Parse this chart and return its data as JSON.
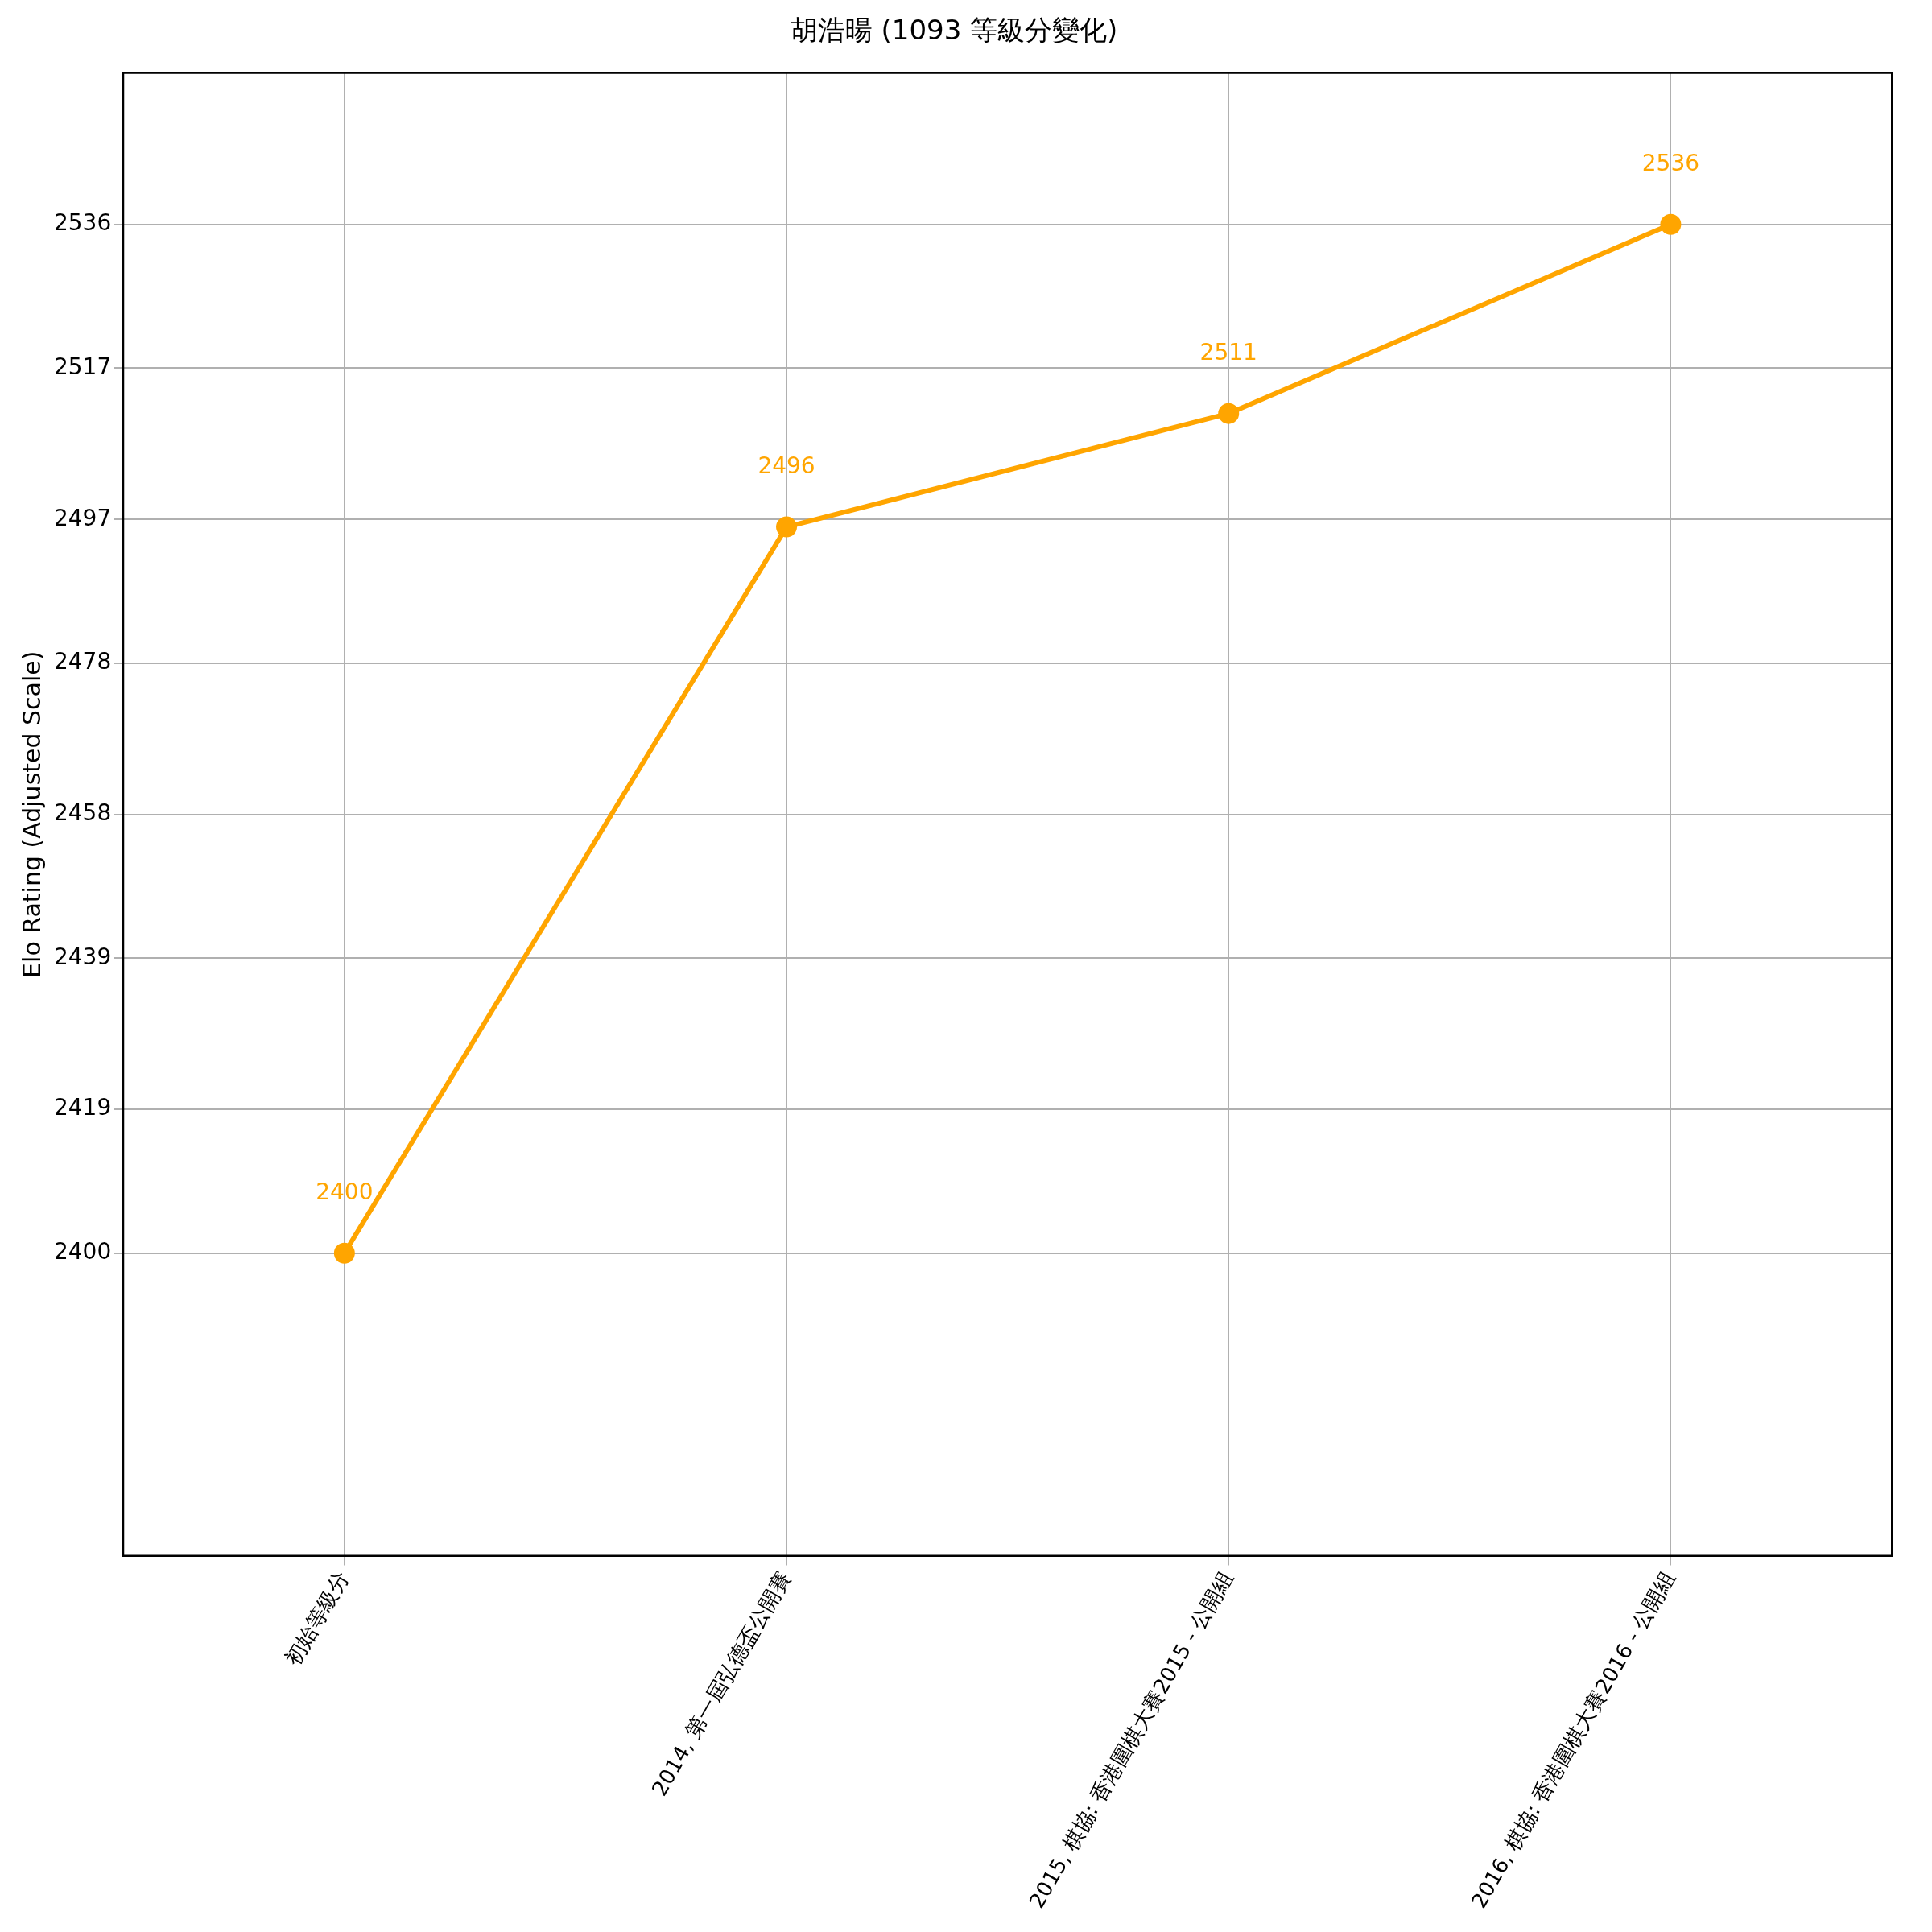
{
  "chart_data": {
    "type": "line",
    "title": "胡浩暘 (1093 等級分變化)",
    "ylabel": "Elo Rating (Adjusted Scale)",
    "categories": [
      "初始等級分",
      "2014, 第一屆弘德盃公開賽",
      "2015, 棋協: 香港圍棋大賽2015 - 公開組",
      "2016, 棋協: 香港圍棋大賽2016 - 公開組"
    ],
    "series": [
      {
        "color": "#ffa500",
        "values": [
          2400,
          2496,
          2511,
          2536
        ]
      }
    ],
    "ylim": [
      2360,
      2556
    ],
    "yticks": [
      2400,
      2419,
      2439,
      2458,
      2478,
      2497,
      2517,
      2536
    ],
    "grid": true,
    "marker": "circle",
    "line_style": "solid",
    "data_labels": true,
    "legend": false
  }
}
